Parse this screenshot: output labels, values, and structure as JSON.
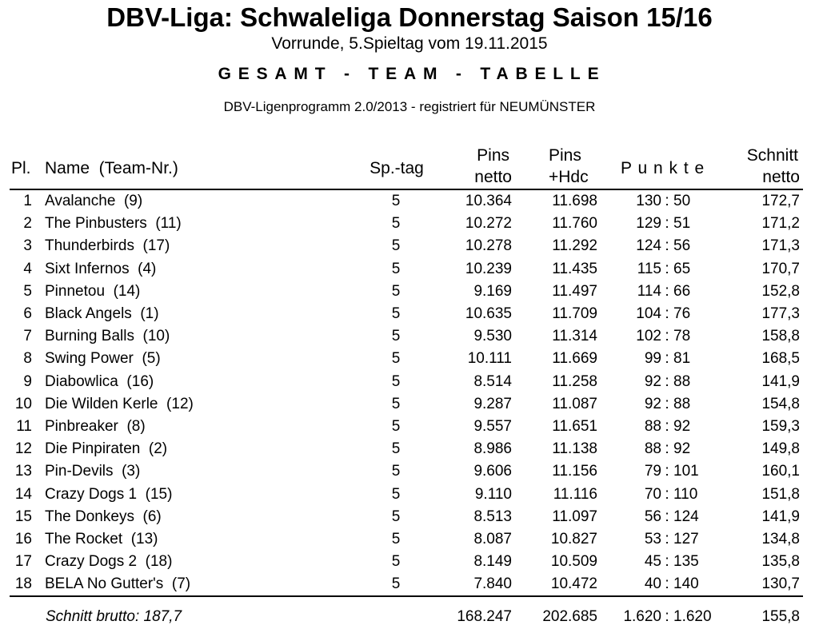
{
  "header": {
    "title": "DBV-Liga: Schwaleliga Donnerstag Saison 15/16",
    "subtitle": "Vorrunde, 5.Spieltag vom 19.11.2015",
    "table_heading": "GESAMT - TEAM - TABELLE",
    "program": "DBV-Ligenprogramm 2.0/2013 - registriert für NEUMÜNSTER"
  },
  "columns": {
    "pl": "Pl.",
    "name": "Name  (Team-Nr.)",
    "sptag": "Sp.-tag",
    "pins_netto_1": "Pins",
    "pins_netto_2": "netto",
    "pins_hdc_1": "Pins",
    "pins_hdc_2": "+Hdc",
    "punkte": "P u n k t e",
    "schnitt_1": "Schnitt",
    "schnitt_2": "netto"
  },
  "rows": [
    {
      "pl": "1",
      "name": "Avalanche  (9)",
      "sp": "5",
      "pins_netto": "10.364",
      "pins_hdc": "11.698",
      "pa": "130",
      "pb": "50",
      "schnitt": "172,7"
    },
    {
      "pl": "2",
      "name": "The Pinbusters  (11)",
      "sp": "5",
      "pins_netto": "10.272",
      "pins_hdc": "11.760",
      "pa": "129",
      "pb": "51",
      "schnitt": "171,2"
    },
    {
      "pl": "3",
      "name": "Thunderbirds  (17)",
      "sp": "5",
      "pins_netto": "10.278",
      "pins_hdc": "11.292",
      "pa": "124",
      "pb": "56",
      "schnitt": "171,3"
    },
    {
      "pl": "4",
      "name": "Sixt Infernos  (4)",
      "sp": "5",
      "pins_netto": "10.239",
      "pins_hdc": "11.435",
      "pa": "115",
      "pb": "65",
      "schnitt": "170,7"
    },
    {
      "pl": "5",
      "name": "Pinnetou  (14)",
      "sp": "5",
      "pins_netto": "9.169",
      "pins_hdc": "11.497",
      "pa": "114",
      "pb": "66",
      "schnitt": "152,8"
    },
    {
      "pl": "6",
      "name": "Black Angels  (1)",
      "sp": "5",
      "pins_netto": "10.635",
      "pins_hdc": "11.709",
      "pa": "104",
      "pb": "76",
      "schnitt": "177,3"
    },
    {
      "pl": "7",
      "name": "Burning Balls  (10)",
      "sp": "5",
      "pins_netto": "9.530",
      "pins_hdc": "11.314",
      "pa": "102",
      "pb": "78",
      "schnitt": "158,8"
    },
    {
      "pl": "8",
      "name": "Swing Power  (5)",
      "sp": "5",
      "pins_netto": "10.111",
      "pins_hdc": "11.669",
      "pa": "99",
      "pb": "81",
      "schnitt": "168,5"
    },
    {
      "pl": "9",
      "name": "Diabowlica  (16)",
      "sp": "5",
      "pins_netto": "8.514",
      "pins_hdc": "11.258",
      "pa": "92",
      "pb": "88",
      "schnitt": "141,9"
    },
    {
      "pl": "10",
      "name": "Die Wilden Kerle  (12)",
      "sp": "5",
      "pins_netto": "9.287",
      "pins_hdc": "11.087",
      "pa": "92",
      "pb": "88",
      "schnitt": "154,8"
    },
    {
      "pl": "11",
      "name": "Pinbreaker  (8)",
      "sp": "5",
      "pins_netto": "9.557",
      "pins_hdc": "11.651",
      "pa": "88",
      "pb": "92",
      "schnitt": "159,3"
    },
    {
      "pl": "12",
      "name": "Die Pinpiraten  (2)",
      "sp": "5",
      "pins_netto": "8.986",
      "pins_hdc": "11.138",
      "pa": "88",
      "pb": "92",
      "schnitt": "149,8"
    },
    {
      "pl": "13",
      "name": "Pin-Devils  (3)",
      "sp": "5",
      "pins_netto": "9.606",
      "pins_hdc": "11.156",
      "pa": "79",
      "pb": "101",
      "schnitt": "160,1"
    },
    {
      "pl": "14",
      "name": "Crazy Dogs 1  (15)",
      "sp": "5",
      "pins_netto": "9.110",
      "pins_hdc": "11.116",
      "pa": "70",
      "pb": "110",
      "schnitt": "151,8"
    },
    {
      "pl": "15",
      "name": "The Donkeys  (6)",
      "sp": "5",
      "pins_netto": "8.513",
      "pins_hdc": "11.097",
      "pa": "56",
      "pb": "124",
      "schnitt": "141,9"
    },
    {
      "pl": "16",
      "name": "The Rocket  (13)",
      "sp": "5",
      "pins_netto": "8.087",
      "pins_hdc": "10.827",
      "pa": "53",
      "pb": "127",
      "schnitt": "134,8"
    },
    {
      "pl": "17",
      "name": "Crazy Dogs 2  (18)",
      "sp": "5",
      "pins_netto": "8.149",
      "pins_hdc": "10.509",
      "pa": "45",
      "pb": "135",
      "schnitt": "135,8"
    },
    {
      "pl": "18",
      "name": "BELA No Gutter's  (7)",
      "sp": "5",
      "pins_netto": "7.840",
      "pins_hdc": "10.472",
      "pa": "40",
      "pb": "140",
      "schnitt": "130,7"
    }
  ],
  "footer": {
    "label": "Schnitt brutto: 187,7",
    "pins_netto": "168.247",
    "pins_hdc": "202.685",
    "pa": "1.620",
    "pb": "1.620",
    "schnitt": "155,8"
  }
}
